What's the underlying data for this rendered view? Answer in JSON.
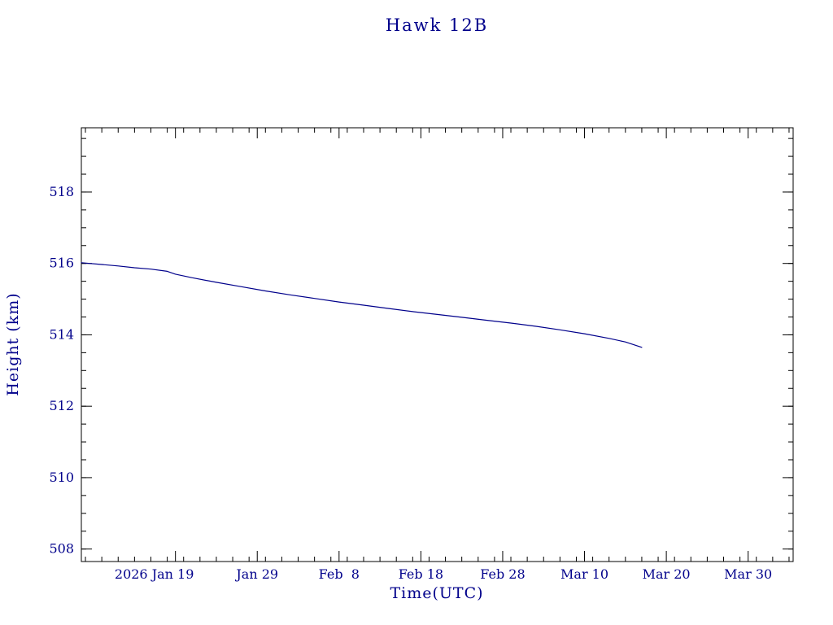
{
  "page": {
    "background": "#ffffff"
  },
  "chart_data": {
    "type": "line",
    "title": "Hawk 12B",
    "xlabel": "Time(UTC)",
    "ylabel": "Height (km)",
    "text_color": "#00008B",
    "line_color": "#00008B",
    "axis_color": "#000000",
    "legend": "none",
    "grid": false,
    "xlim": [
      7.5,
      94.5
    ],
    "ylim": [
      507.65,
      519.8
    ],
    "x_major_ticks": [
      {
        "value": 19,
        "label": "2026 Jan 19",
        "dx": -26
      },
      {
        "value": 29,
        "label": "Jan 29",
        "dx": 0
      },
      {
        "value": 39,
        "label": "Feb  8",
        "dx": 0
      },
      {
        "value": 49,
        "label": "Feb 18",
        "dx": 0
      },
      {
        "value": 59,
        "label": "Feb 28",
        "dx": 0
      },
      {
        "value": 69,
        "label": "Mar 10",
        "dx": 0
      },
      {
        "value": 79,
        "label": "Mar 20",
        "dx": 0
      },
      {
        "value": 89,
        "label": "Mar 30",
        "dx": 0
      }
    ],
    "x_minor_step": 2,
    "y_major_ticks": [
      {
        "value": 508,
        "label": "508"
      },
      {
        "value": 510,
        "label": "510"
      },
      {
        "value": 512,
        "label": "512"
      },
      {
        "value": 514,
        "label": "514"
      },
      {
        "value": 516,
        "label": "516"
      },
      {
        "value": 518,
        "label": "518"
      }
    ],
    "y_minor_step": 0.5,
    "series": [
      {
        "name": "height-km",
        "x": [
          7.5,
          10,
          12,
          14,
          16,
          18,
          19,
          21,
          24,
          27,
          30,
          33,
          36,
          39,
          42,
          45,
          48,
          51,
          54,
          57,
          60,
          63,
          66,
          69,
          72,
          74,
          76
        ],
        "y": [
          516.02,
          515.97,
          515.93,
          515.88,
          515.84,
          515.78,
          515.7,
          515.6,
          515.47,
          515.35,
          515.23,
          515.12,
          515.02,
          514.92,
          514.83,
          514.74,
          514.65,
          514.57,
          514.49,
          514.41,
          514.33,
          514.24,
          514.14,
          514.03,
          513.9,
          513.8,
          513.65
        ]
      }
    ]
  }
}
